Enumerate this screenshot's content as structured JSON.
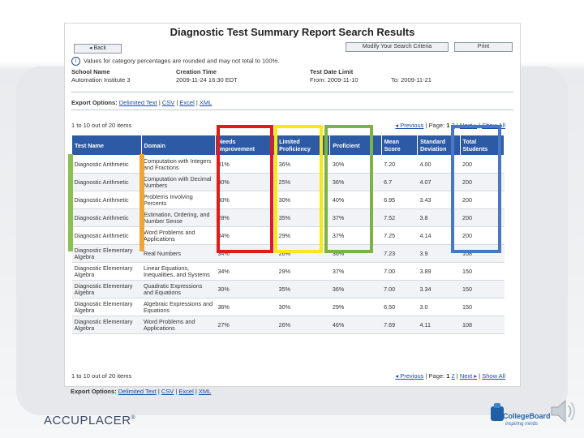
{
  "report": {
    "title": "Diagnostic Test Summary Report Search Results",
    "back_label": "Back",
    "modify_label": "Modify Your Search Criteria",
    "print_label": "Print",
    "info_text": "Values for category percentages are rounded and may not total to 100%.",
    "school_name_label": "School Name",
    "school_name_value": "Automation Institute 3",
    "creation_time_label": "Creation Time",
    "creation_time_value": "2009-11-24 16:30 EDT",
    "test_date_label": "Test Date Limit",
    "from_label": "From:",
    "from_value": "2009-11-10",
    "to_label": "To:",
    "to_value": "2009-11-21"
  },
  "export": {
    "label": "Export Options:",
    "links": [
      "Delimited Text",
      "CSV",
      "Excel",
      "XML"
    ]
  },
  "pager": {
    "count_text": "1 to 10 out of 20 items",
    "previous": "Previous",
    "page_label": "Page:",
    "page_current": "1",
    "page_next_num": "2",
    "next": "Next",
    "show_all": "Show All"
  },
  "table": {
    "headers": [
      "Test Name",
      "Domain",
      "Needs Improvement",
      "Limited Proficiency",
      "Proficient",
      "Mean Score",
      "Standard Deviation",
      "Total Students"
    ],
    "rows": [
      [
        "Diagnostic Arithmetic",
        "Computation with Integers and Fractions",
        "31%",
        "36%",
        "30%",
        "7.20",
        "4.00",
        "200"
      ],
      [
        "Diagnostic Arithmetic",
        "Computation with Decimal Numbers",
        "40%",
        "25%",
        "36%",
        "6.7",
        "4.07",
        "200"
      ],
      [
        "Diagnostic Arithmetic",
        "Problems Involving Percents",
        "30%",
        "30%",
        "40%",
        "6.95",
        "3.43",
        "200"
      ],
      [
        "Diagnostic Arithmetic",
        "Estimation, Ordering, and Number Sense",
        "28%",
        "35%",
        "37%",
        "7.52",
        "3.8",
        "200"
      ],
      [
        "Diagnostic Arithmetic",
        "Word Problems and Applications",
        "34%",
        "29%",
        "37%",
        "7.25",
        "4.14",
        "200"
      ],
      [
        "Diagnostic Elementary Algebra",
        "Real Numbers",
        "34%",
        "26%",
        "36%",
        "7.23",
        "3.9",
        "108"
      ],
      [
        "Diagnostic Elementary Algebra",
        "Linear Equations, Inequalities, and Systems",
        "34%",
        "29%",
        "37%",
        "7.00",
        "3.89",
        "150"
      ],
      [
        "Diagnostic Elementary Algebra",
        "Quadratic Expressions and Equations",
        "30%",
        "35%",
        "36%",
        "7.00",
        "3.34",
        "150"
      ],
      [
        "Diagnostic Elementary Algebra",
        "Algebraic Expressions and Equations",
        "36%",
        "30%",
        "29%",
        "6.50",
        "3.0",
        "150"
      ],
      [
        "Diagnostic Elementary Algebra",
        "Word Problems and Applications",
        "27%",
        "26%",
        "46%",
        "7.69",
        "4.11",
        "108"
      ]
    ]
  },
  "branding": {
    "accuplacer": "ACCUPLACER",
    "collegeboard": "CollegeBoard",
    "collegeboard_tag": "inspiring minds"
  },
  "colors": {
    "highlight_needs_improvement": "#e01b1b",
    "highlight_limited_proficiency": "#f2ea1b",
    "highlight_proficient": "#7cb342",
    "highlight_total_students": "#4a77c4",
    "header_blue": "#2d5aa5"
  }
}
